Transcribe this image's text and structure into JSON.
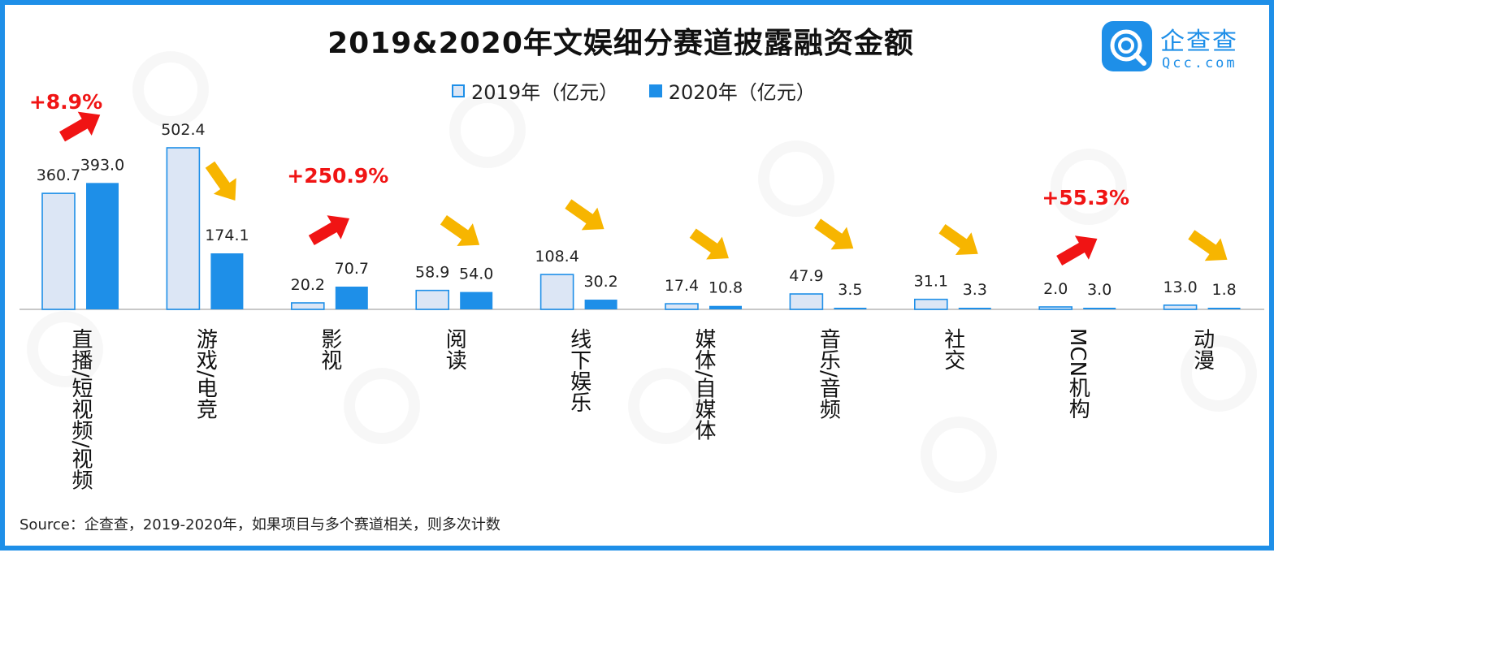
{
  "header": {
    "title": "2019&2020年文娱细分赛道披露融资金额"
  },
  "logo": {
    "name": "企查查",
    "domain": "Qcc.com",
    "icon": "qcc-magnifier-logo-icon"
  },
  "source_note": "Source：企查查，2019-2020年，如果项目与多个赛道相关，则多次计数",
  "colors": {
    "frame": "#1e8fe8",
    "series_2019_fill": "#dce6f5",
    "series_2019_stroke": "#1e8fe8",
    "series_2020_fill": "#1e8fe8",
    "arrow_up": "#f01414",
    "arrow_down": "#f7b500",
    "growth_text": "#f01414"
  },
  "chart_data": {
    "type": "bar",
    "title": "2019&2020年文娱细分赛道披露融资金额",
    "xlabel": "",
    "ylabel": "",
    "ylim": [
      0,
      520
    ],
    "grid": false,
    "legend_position": "top-center",
    "categories": [
      "直播/短视频/视频",
      "游戏/电竞",
      "影视",
      "阅读",
      "线下娱乐",
      "媒体/自媒体",
      "音乐/音频",
      "社交",
      "MCN机构",
      "动漫"
    ],
    "series": [
      {
        "name": "2019年（亿元）",
        "values": [
          360.7,
          502.4,
          20.2,
          58.9,
          108.4,
          17.4,
          47.9,
          31.1,
          2.0,
          13.0
        ]
      },
      {
        "name": "2020年（亿元）",
        "values": [
          393.0,
          174.1,
          70.7,
          54.0,
          30.2,
          10.8,
          3.5,
          3.3,
          3.0,
          1.8
        ]
      }
    ],
    "value_labels": {
      "2019": [
        "360.7",
        "502.4",
        "20.2",
        "58.9",
        "108.4",
        "17.4",
        "47.9",
        "31.1",
        "2.0",
        "13.0"
      ],
      "2020": [
        "393.0",
        "174.1",
        "70.7",
        "54.0",
        "30.2",
        "10.8",
        "3.5",
        "3.3",
        "3.0",
        "1.8"
      ]
    },
    "trend_arrows": [
      "up",
      "down",
      "up",
      "down",
      "down",
      "down",
      "down",
      "down",
      "up",
      "down"
    ],
    "growth_annotations": [
      {
        "category": "直播/短视频/视频",
        "text": "+8.9%"
      },
      {
        "category": "影视",
        "text": "+250.9%"
      },
      {
        "category": "MCN机构",
        "text": "+55.3%"
      }
    ]
  }
}
